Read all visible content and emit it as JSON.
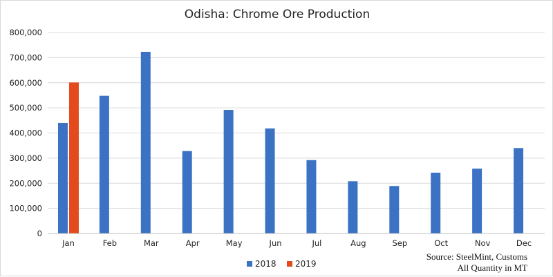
{
  "chart_data": {
    "type": "bar",
    "title": "Odisha: Chrome Ore Production",
    "categories": [
      "Jan",
      "Feb",
      "Mar",
      "Apr",
      "May",
      "Jun",
      "Jul",
      "Aug",
      "Sep",
      "Oct",
      "Nov",
      "Dec"
    ],
    "series": [
      {
        "name": "2018",
        "color": "#3b72c4",
        "values": [
          440000,
          548000,
          723000,
          328000,
          492000,
          418000,
          292000,
          208000,
          189000,
          242000,
          258000,
          340000
        ]
      },
      {
        "name": "2019",
        "color": "#e34a1c",
        "values": [
          601000,
          null,
          null,
          null,
          null,
          null,
          null,
          null,
          null,
          null,
          null,
          null
        ]
      }
    ],
    "ylim": [
      0,
      800000
    ],
    "yticks": [
      "0",
      "100,000",
      "200,000",
      "300,000",
      "400,000",
      "500,000",
      "600,000",
      "700,000",
      "800,000"
    ],
    "grid": true,
    "legend_position": "bottom-center"
  },
  "notes": {
    "source": "Source: SteelMint, Customs",
    "units": "All Quantity in MT"
  }
}
